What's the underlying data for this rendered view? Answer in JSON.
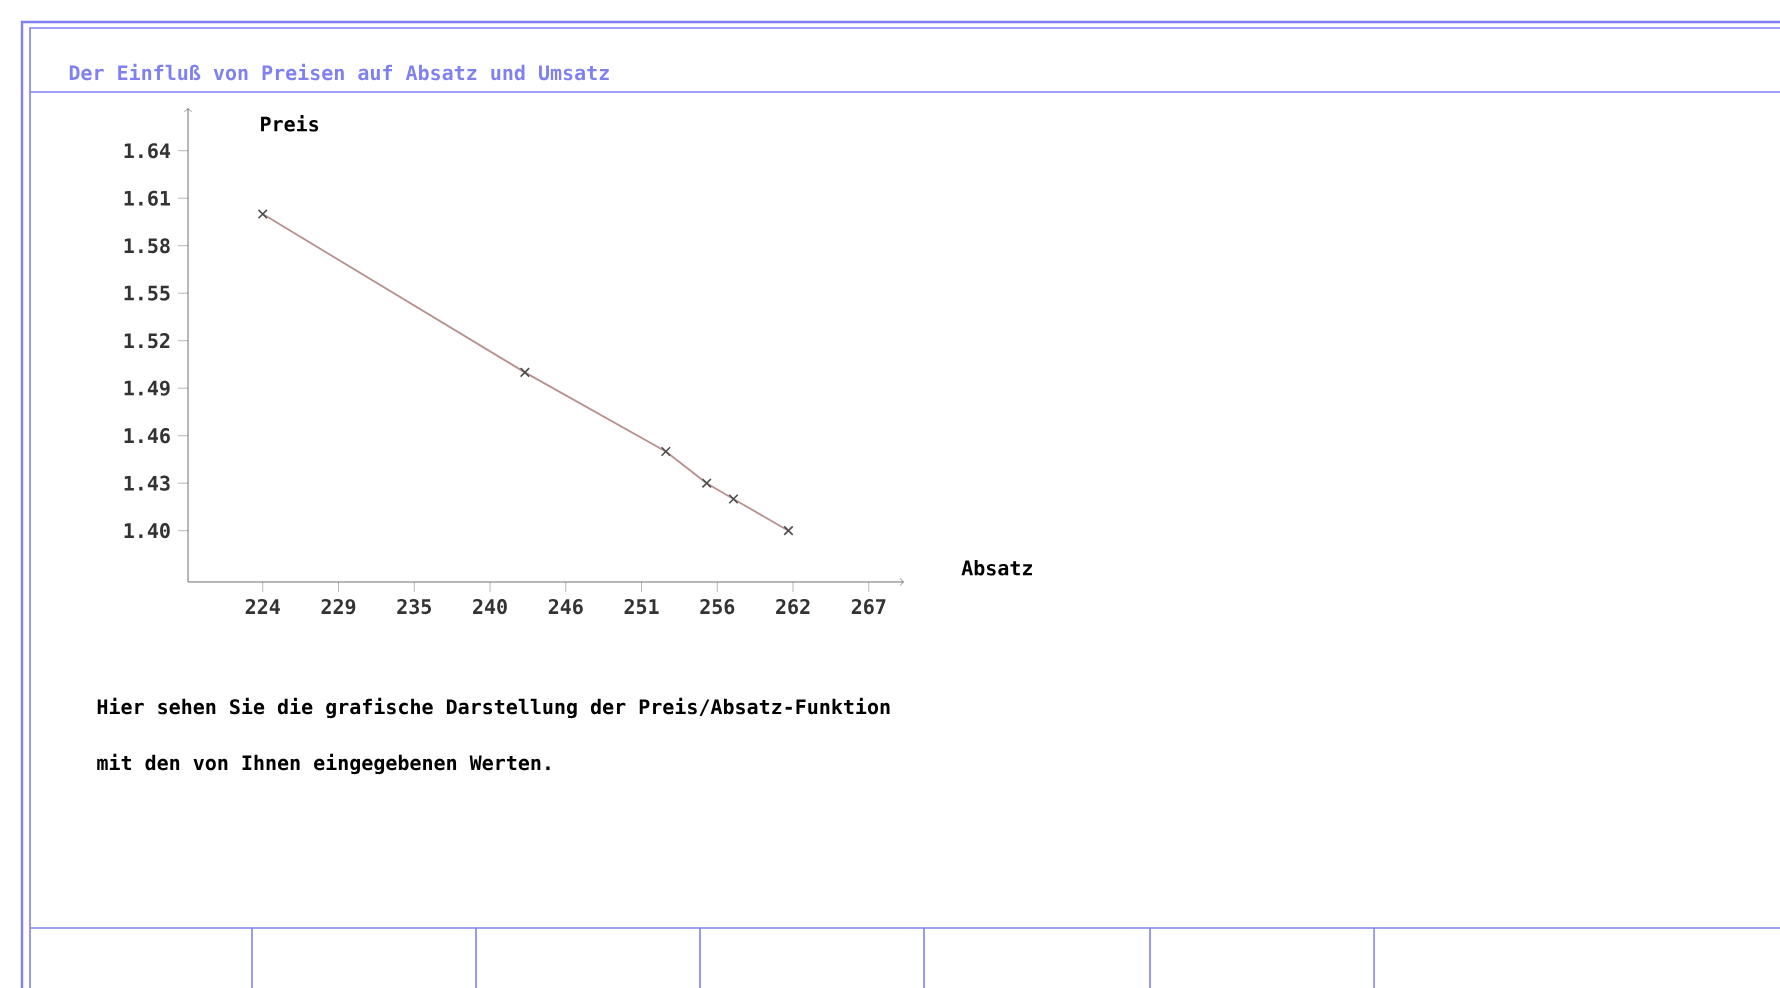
{
  "chart_data": {
    "type": "line",
    "title": "Der Einfluß von Preisen auf Absatz und Umsatz",
    "xlabel": "Absatz",
    "ylabel": "Preis",
    "annotations": [
      "Hier  sehen Sie die  grafische  Darstellung der Preis/Absatz-Funktion",
      "mit den von Ihnen eingegebenen Werten."
    ],
    "x": [
      224,
      242.6,
      252.6,
      255.5,
      257.4,
      261.3
    ],
    "series": [
      {
        "color": "#b89090",
        "values": [
          1.6,
          1.5,
          1.45,
          1.43,
          1.42,
          1.4
        ]
      }
    ],
    "xlim": [
      218.7,
      269.5
    ],
    "ylim": [
      1.3676,
      1.667
    ],
    "xticks": [
      224,
      {
        "value": 229.375,
        "label": "229"
      },
      {
        "value": 234.75,
        "label": "235"
      },
      {
        "value": 240.125,
        "label": "240"
      },
      {
        "value": 245.5,
        "label": "246"
      },
      {
        "value": 250.875,
        "label": "251"
      },
      {
        "value": 256.25,
        "label": "256"
      },
      {
        "value": 261.625,
        "label": "262"
      },
      267
    ],
    "yticks": [
      {
        "value": 1.4,
        "label": "1.40"
      },
      1.43,
      1.46,
      1.49,
      1.52,
      1.55,
      1.58,
      1.61,
      1.64
    ],
    "marker": "cross",
    "line_style": "solid",
    "grid": false
  }
}
